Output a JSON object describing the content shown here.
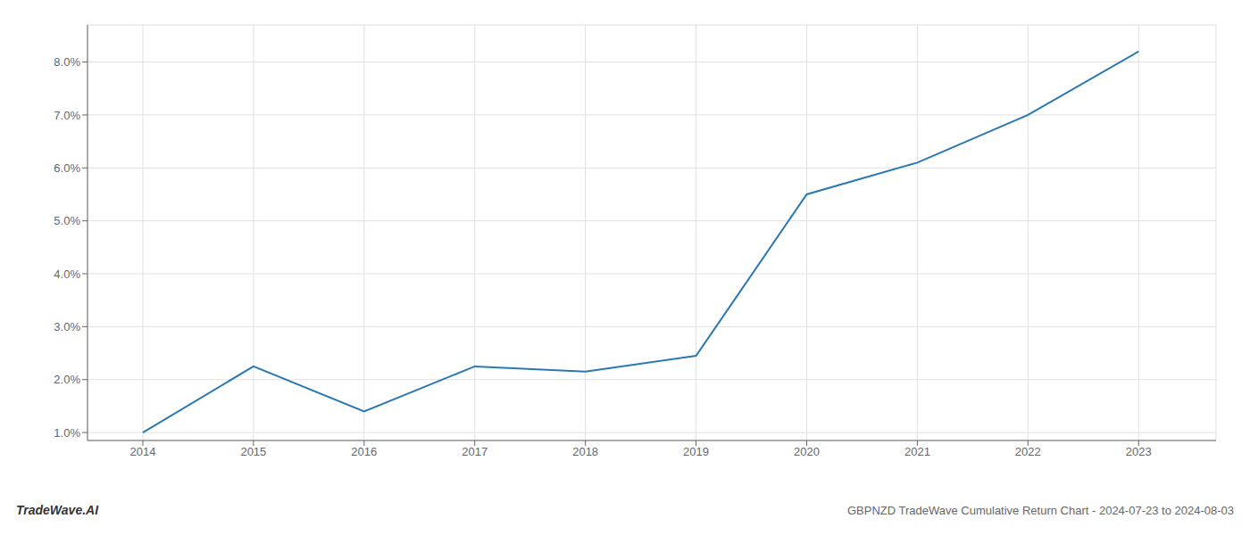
{
  "chart_data": {
    "type": "line",
    "x": [
      2014,
      2015,
      2016,
      2017,
      2018,
      2019,
      2020,
      2021,
      2022,
      2023
    ],
    "values": [
      1.0,
      2.25,
      1.4,
      2.25,
      2.15,
      2.45,
      5.5,
      6.1,
      7.0,
      8.2
    ],
    "color": "#2878b5",
    "xlim": [
      2013.5,
      2023.7
    ],
    "ylim": [
      0.85,
      8.7
    ],
    "xticks": [
      2014,
      2015,
      2016,
      2017,
      2018,
      2019,
      2020,
      2021,
      2022,
      2023
    ],
    "yticks": [
      {
        "value": 1.0,
        "label": "1.0%"
      },
      {
        "value": 2.0,
        "label": "2.0%"
      },
      {
        "value": 3.0,
        "label": "3.0%"
      },
      {
        "value": 4.0,
        "label": "4.0%"
      },
      {
        "value": 5.0,
        "label": "5.0%"
      },
      {
        "value": 6.0,
        "label": "6.0%"
      },
      {
        "value": 7.0,
        "label": "7.0%"
      },
      {
        "value": 8.0,
        "label": "8.0%"
      }
    ],
    "grid": true,
    "annotations": [
      "TradeWave.AI",
      "GBPNZD TradeWave Cumulative Return Chart - 2024-07-23 to 2024-08-03"
    ]
  }
}
